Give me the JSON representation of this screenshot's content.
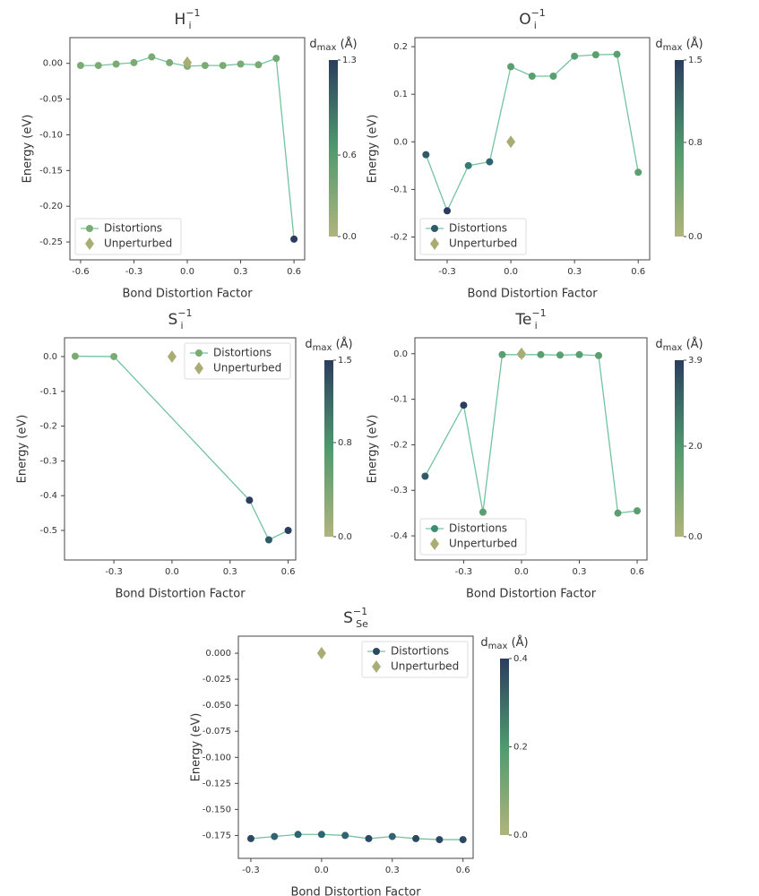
{
  "chart_data": [
    {
      "type": "line",
      "title": {
        "base": "H",
        "sub": "i",
        "sup": "−1"
      },
      "x_label": "Bond Distortion Factor",
      "y_label": "Energy (eV)",
      "legend": "lower left",
      "xlim": [
        -0.66,
        0.66
      ],
      "xticks": [
        -0.6,
        -0.3,
        {
          "value": 0,
          "label": "0.0"
        },
        0.3,
        0.6
      ],
      "ylim": [
        -0.275,
        0.036
      ],
      "yticks": [
        {
          "value": 0,
          "label": "0.00"
        },
        -0.05,
        {
          "value": -0.1,
          "label": "-0.10"
        },
        -0.15,
        {
          "value": -0.2,
          "label": "-0.20"
        },
        -0.25
      ],
      "colorbar": {
        "label": {
          "base": "d",
          "sub": "max",
          "rest": " (Å)"
        },
        "lim": [
          0,
          1.3
        ],
        "ticks": [
          {
            "value": 0,
            "label": "0.0"
          },
          0.6,
          1.3
        ],
        "colors": [
          "#b0b47c",
          "#4f9a6e",
          "#2b3d5e"
        ]
      },
      "series": [
        {
          "name": "Distortions",
          "color": "#7aab73",
          "line_color": "#74c3a0",
          "x": [
            -0.6,
            -0.5,
            -0.4,
            -0.3,
            -0.2,
            -0.1,
            0.0,
            0.1,
            0.2,
            0.3,
            0.4,
            0.5,
            0.6
          ],
          "values": [
            -0.003,
            -0.003,
            -0.001,
            0.001,
            0.009,
            0.001,
            -0.004,
            -0.003,
            -0.003,
            -0.001,
            -0.002,
            0.007,
            -0.246
          ],
          "point_colors": [
            "#7aab73",
            "#7aab73",
            "#7aab73",
            "#7aab73",
            "#7aab73",
            "#7aab73",
            "#7aab73",
            "#7aab73",
            "#7aab73",
            "#7aab73",
            "#7aab73",
            "#6fa872",
            "#2b3d5e"
          ]
        },
        {
          "name": "Unperturbed",
          "color": "#a9ad74",
          "x": [
            0.0
          ],
          "values": [
            0.001
          ]
        }
      ]
    },
    {
      "type": "line",
      "title": {
        "base": "O",
        "sub": "i",
        "sup": "−1"
      },
      "x_label": "Bond Distortion Factor",
      "y_label": "Energy (eV)",
      "legend": "lower left",
      "xlim": [
        -0.452,
        0.654
      ],
      "xticks": [
        -0.3,
        {
          "value": 0,
          "label": "0.0"
        },
        0.3,
        0.6
      ],
      "ylim": [
        -0.248,
        0.219
      ],
      "yticks": [
        0.2,
        0.1,
        {
          "value": 0,
          "label": "0.0"
        },
        -0.1,
        -0.2
      ],
      "colorbar": {
        "label": {
          "base": "d",
          "sub": "max",
          "rest": " (Å)"
        },
        "lim": [
          0,
          1.5
        ],
        "ticks": [
          {
            "value": 0,
            "label": "0.0"
          },
          0.8,
          1.5
        ],
        "colors": [
          "#b0b47c",
          "#4f9a6e",
          "#2b3d5e"
        ]
      },
      "series": [
        {
          "name": "Distortions",
          "color": "#2f5a6a",
          "line_color": "#74c3a0",
          "x": [
            -0.4,
            -0.3,
            -0.2,
            -0.1,
            0.0,
            0.1,
            0.2,
            0.3,
            0.4,
            0.5,
            0.6
          ],
          "values": [
            -0.027,
            -0.145,
            -0.05,
            -0.042,
            0.158,
            0.138,
            0.138,
            0.18,
            0.183,
            0.184,
            -0.064
          ],
          "point_colors": [
            "#2f5a6a",
            "#2b3d5e",
            "#3a7a75",
            "#2f6470",
            "#5a9f70",
            "#5a9f70",
            "#5a9f70",
            "#5a9f70",
            "#5a9f70",
            "#5a9f70",
            "#5a9f70"
          ]
        },
        {
          "name": "Unperturbed",
          "color": "#a9ad74",
          "x": [
            0.0
          ],
          "values": [
            0.0
          ]
        }
      ]
    },
    {
      "type": "line",
      "title": {
        "base": "S",
        "sub": "i",
        "sup": "−1"
      },
      "x_label": "Bond Distortion Factor",
      "y_label": "Energy (eV)",
      "legend": "upper right",
      "xlim": [
        -0.555,
        0.639
      ],
      "xticks": [
        -0.3,
        {
          "value": 0,
          "label": "0.0"
        },
        0.3,
        0.6
      ],
      "ylim": [
        -0.585,
        0.054
      ],
      "yticks": [
        {
          "value": 0,
          "label": "0.0"
        },
        -0.1,
        -0.2,
        -0.3,
        -0.4,
        -0.5
      ],
      "colorbar": {
        "label": {
          "base": "d",
          "sub": "max",
          "rest": " (Å)"
        },
        "lim": [
          0,
          1.5
        ],
        "ticks": [
          {
            "value": 0,
            "label": "0.0"
          },
          0.8,
          1.5
        ],
        "colors": [
          "#b0b47c",
          "#4f9a6e",
          "#2b3d5e"
        ]
      },
      "series": [
        {
          "name": "Distortions",
          "color": "#7aab73",
          "line_color": "#74c3a0",
          "x": [
            -0.5,
            -0.3,
            0.4,
            0.5,
            0.6
          ],
          "values": [
            0.001,
            0.0,
            -0.413,
            -0.527,
            -0.5
          ],
          "point_colors": [
            "#7aab73",
            "#7aab73",
            "#2b3d5e",
            "#2f5a6a",
            "#2b3d5e"
          ]
        },
        {
          "name": "Unperturbed",
          "color": "#a9ad74",
          "x": [
            0.0
          ],
          "values": [
            0.0
          ]
        }
      ]
    },
    {
      "type": "line",
      "title": {
        "base": "Te",
        "sub": "i",
        "sup": "−1"
      },
      "x_label": "Bond Distortion Factor",
      "y_label": "Energy (eV)",
      "legend": "lower left",
      "xlim": [
        -0.553,
        0.651
      ],
      "xticks": [
        -0.3,
        {
          "value": 0,
          "label": "0.0"
        },
        0.3,
        0.6
      ],
      "ylim": [
        -0.453,
        0.035
      ],
      "yticks": [
        {
          "value": 0,
          "label": "0.0"
        },
        -0.1,
        -0.2,
        -0.3,
        -0.4
      ],
      "colorbar": {
        "label": {
          "base": "d",
          "sub": "max",
          "rest": " (Å)"
        },
        "lim": [
          0,
          3.9
        ],
        "ticks": [
          {
            "value": 0,
            "label": "0.0"
          },
          {
            "value": 2,
            "label": "2.0"
          },
          3.9
        ],
        "colors": [
          "#b0b47c",
          "#4f9a6e",
          "#2b3d5e"
        ]
      },
      "series": [
        {
          "name": "Distortions",
          "color": "#3f8c73",
          "line_color": "#74c3a0",
          "x": [
            -0.5,
            -0.3,
            -0.2,
            -0.1,
            0.0,
            0.1,
            0.2,
            0.3,
            0.4,
            0.5,
            0.6
          ],
          "values": [
            -0.269,
            -0.113,
            -0.348,
            -0.002,
            -0.002,
            -0.002,
            -0.003,
            -0.002,
            -0.004,
            -0.35,
            -0.345
          ],
          "point_colors": [
            "#2f5a6a",
            "#2b3d5e",
            "#5a9f70",
            "#5a9f70",
            "#5a9f70",
            "#5a9f70",
            "#5a9f70",
            "#5a9f70",
            "#5a9f70",
            "#5a9f70",
            "#5a9f70"
          ]
        },
        {
          "name": "Unperturbed",
          "color": "#a9ad74",
          "x": [
            0.0
          ],
          "values": [
            0.0
          ]
        }
      ]
    },
    {
      "type": "line",
      "title": {
        "base": "S",
        "sub": "Se",
        "sup": "−1"
      },
      "x_label": "Bond Distortion Factor",
      "y_label": "Energy (eV)",
      "legend": "upper right",
      "xlim": [
        -0.353,
        0.643
      ],
      "xticks": [
        -0.3,
        {
          "value": 0,
          "label": "0.0"
        },
        0.3,
        0.6
      ],
      "ylim": [
        -0.197,
        0.0164
      ],
      "yticks": [
        {
          "value": 0,
          "label": "0.000"
        },
        -0.025,
        {
          "value": -0.05,
          "label": "-0.050"
        },
        -0.075,
        {
          "value": -0.1,
          "label": "-0.100"
        },
        -0.125,
        {
          "value": -0.15,
          "label": "-0.150"
        },
        -0.175
      ],
      "colorbar": {
        "label": {
          "base": "d",
          "sub": "max",
          "rest": " (Å)"
        },
        "lim": [
          0,
          0.4
        ],
        "ticks": [
          {
            "value": 0,
            "label": "0.0"
          },
          0.2,
          0.4
        ],
        "colors": [
          "#b0b47c",
          "#4f9a6e",
          "#2b3d5e"
        ]
      },
      "series": [
        {
          "name": "Distortions",
          "color": "#2b4a62",
          "line_color": "#74c3a0",
          "x": [
            -0.3,
            -0.2,
            -0.1,
            0.0,
            0.1,
            0.2,
            0.3,
            0.4,
            0.5,
            0.6
          ],
          "values": [
            -0.178,
            -0.176,
            -0.174,
            -0.174,
            -0.175,
            -0.178,
            -0.176,
            -0.178,
            -0.179,
            -0.179
          ],
          "point_colors": [
            "#2b4a62",
            "#2f6470",
            "#2f6470",
            "#2f6470",
            "#2f6470",
            "#2b4a62",
            "#2f6470",
            "#2b4a62",
            "#2b4a62",
            "#2b4a62"
          ]
        },
        {
          "name": "Unperturbed",
          "color": "#a9ad74",
          "x": [
            0.0
          ],
          "values": [
            0.0
          ]
        }
      ]
    }
  ]
}
